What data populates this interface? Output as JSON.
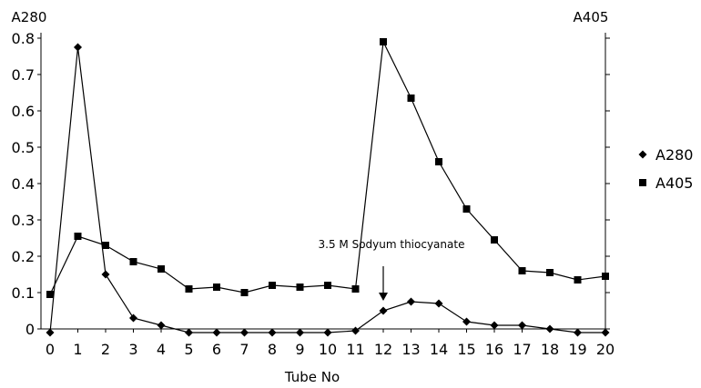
{
  "chart_data": {
    "type": "line",
    "title": "",
    "xlabel": "Tube No",
    "ylabel_left": "A280",
    "ylabel_right": "A405",
    "x": [
      0,
      1,
      2,
      3,
      4,
      5,
      6,
      7,
      8,
      9,
      10,
      11,
      12,
      13,
      14,
      15,
      16,
      17,
      18,
      19,
      20
    ],
    "x_tick_labels": [
      "0",
      "1",
      "2",
      "3",
      "4",
      "5",
      "6",
      "7",
      "8",
      "9",
      "10",
      "11",
      "12",
      "13",
      "14",
      "15",
      "16",
      "17",
      "18",
      "19",
      "20"
    ],
    "y_tick_labels": [
      "0",
      "0.1",
      "0.2",
      "0.3",
      "0.4",
      "0.5",
      "0.6",
      "0.7",
      "0.8"
    ],
    "ylim": [
      0,
      0.8
    ],
    "series": [
      {
        "name": "A280",
        "marker": "diamond",
        "values": [
          -0.01,
          0.775,
          0.15,
          0.03,
          0.01,
          -0.01,
          -0.01,
          -0.01,
          -0.01,
          -0.01,
          -0.01,
          -0.005,
          0.05,
          0.075,
          0.07,
          0.02,
          0.01,
          0.01,
          0,
          -0.01,
          -0.01
        ]
      },
      {
        "name": "A405",
        "marker": "square",
        "values": [
          0.095,
          0.255,
          0.23,
          0.185,
          0.165,
          0.11,
          0.115,
          0.1,
          0.12,
          0.115,
          0.12,
          0.11,
          0.79,
          0.635,
          0.46,
          0.33,
          0.245,
          0.16,
          0.155,
          0.135,
          0.145
        ]
      }
    ],
    "legend_position": "right",
    "annotation": {
      "text": "3.5 M Sodyum thiocyanate",
      "x": 12
    },
    "grid": false
  },
  "colors": {
    "line": "#000000",
    "marker": "#000000",
    "axis": "#000000"
  }
}
